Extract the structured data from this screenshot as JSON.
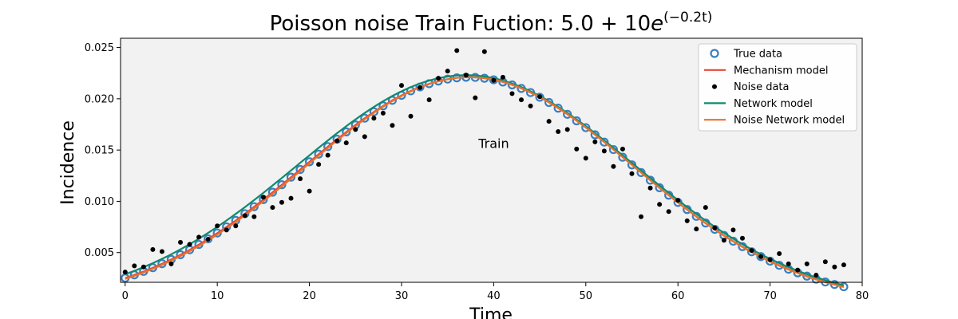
{
  "chart_data": {
    "type": "line",
    "title": "Poisson noise Train Fuction: 5.0 + 10e^(−0.2t)",
    "title_parts": {
      "prefix": "Poisson noise Train Fuction: 5.0 + 10",
      "base": "e",
      "exponent": "(−0.2t)"
    },
    "xlabel": "Time",
    "ylabel": "Incidence",
    "xlim": [
      -0.5,
      80
    ],
    "ylim": [
      0.0021,
      0.0259
    ],
    "xticks": [
      0,
      10,
      20,
      30,
      40,
      50,
      60,
      70,
      80
    ],
    "yticks": [
      0.005,
      0.01,
      0.015,
      0.02,
      0.025
    ],
    "ytick_labels": [
      "0.005",
      "0.010",
      "0.015",
      "0.020",
      "0.025"
    ],
    "grid": false,
    "background": "#f2f2f2",
    "legend_position": "top-right",
    "annotation": {
      "text": "Train",
      "x": 40,
      "y": 0.0152
    },
    "series": [
      {
        "name": "True data",
        "kind": "open-circles",
        "color": "#3a7fc1",
        "model": {
          "peak": 0.0221,
          "center": 37.3,
          "width": 17.9
        }
      },
      {
        "name": "Mechanism model",
        "kind": "line",
        "color": "#e04a3a",
        "model": {
          "peak": 0.0221,
          "center": 37.3,
          "width": 17.9
        }
      },
      {
        "name": "Noise data",
        "kind": "dots",
        "color": "#000000",
        "x": [
          0,
          1,
          2,
          3,
          4,
          5,
          6,
          7,
          8,
          9,
          10,
          11,
          12,
          13,
          14,
          15,
          16,
          17,
          18,
          19,
          20,
          21,
          22,
          23,
          24,
          25,
          26,
          27,
          28,
          29,
          30,
          31,
          32,
          33,
          34,
          35,
          36,
          37,
          38,
          39,
          40,
          41,
          42,
          43,
          44,
          45,
          46,
          47,
          48,
          49,
          50,
          51,
          52,
          53,
          54,
          55,
          56,
          57,
          58,
          59,
          60,
          61,
          62,
          63,
          64,
          65,
          66,
          67,
          68,
          69,
          70,
          71,
          72,
          73,
          74,
          75,
          76,
          77,
          78
        ],
        "y": [
          0.0031,
          0.0037,
          0.0036,
          0.0053,
          0.0051,
          0.0039,
          0.006,
          0.0058,
          0.0065,
          0.0063,
          0.0076,
          0.0072,
          0.0076,
          0.0086,
          0.0085,
          0.0104,
          0.0094,
          0.0099,
          0.0103,
          0.0122,
          0.011,
          0.0136,
          0.0145,
          0.0159,
          0.0157,
          0.017,
          0.0163,
          0.0181,
          0.0186,
          0.0174,
          0.0213,
          0.0183,
          0.0211,
          0.0199,
          0.022,
          0.0227,
          0.0247,
          0.0223,
          0.0201,
          0.0246,
          0.0218,
          0.0221,
          0.0205,
          0.0199,
          0.0193,
          0.0202,
          0.0178,
          0.0168,
          0.017,
          0.0151,
          0.0142,
          0.0158,
          0.0149,
          0.0134,
          0.0151,
          0.0127,
          0.0085,
          0.0113,
          0.0097,
          0.009,
          0.0101,
          0.0081,
          0.0073,
          0.0094,
          0.0074,
          0.0062,
          0.0072,
          0.0064,
          0.0052,
          0.0046,
          0.0043,
          0.0049,
          0.0039,
          0.0033,
          0.0039,
          0.0028,
          0.0041,
          0.0036,
          0.0038
        ]
      },
      {
        "name": "Network model",
        "kind": "line",
        "color": "#0f8a6e",
        "model": {
          "peak": 0.0223,
          "center": 37.0,
          "width": 18.3,
          "floor": 0.0004
        }
      },
      {
        "name": "Noise Network model",
        "kind": "line",
        "color": "#e8722d",
        "model": {
          "peak": 0.0221,
          "center": 37.4,
          "width": 17.8
        }
      }
    ]
  }
}
